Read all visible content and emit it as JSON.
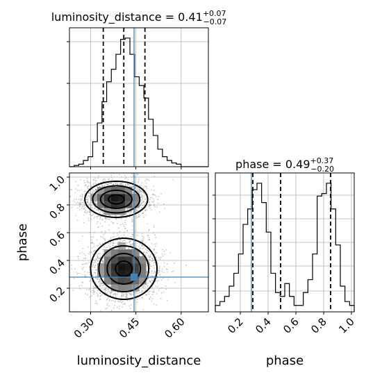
{
  "chart_data": [
    {
      "type": "histogram",
      "name": "luminosity_distance",
      "title": {
        "main": "luminosity_distance = 0.41",
        "sup": "+0.07",
        "sub": "−0.07"
      },
      "xlim": [
        0.23,
        0.69
      ],
      "x_ticks": [
        0.3,
        0.45,
        0.6
      ],
      "quantiles": [
        0.342,
        0.41,
        0.48
      ],
      "truth": 0.444,
      "bin_edges": [
        0.23,
        0.2454,
        0.2608,
        0.2762,
        0.2916,
        0.307,
        0.3224,
        0.3378,
        0.3532,
        0.3686,
        0.384,
        0.3994,
        0.4148,
        0.4302,
        0.4456,
        0.461,
        0.4764,
        0.4918,
        0.5072,
        0.5226,
        0.538,
        0.5534,
        0.5688,
        0.5842,
        0.5996,
        0.615,
        0.6304,
        0.6458,
        0.6612,
        0.6766,
        0.69
      ],
      "counts": [
        0,
        1,
        2,
        5,
        8,
        20,
        35,
        52,
        68,
        78,
        90,
        102,
        103,
        90,
        72,
        65,
        55,
        38,
        25,
        14,
        8,
        5,
        3,
        2,
        0,
        0,
        0,
        0,
        0,
        0
      ]
    },
    {
      "type": "histogram",
      "name": "phase",
      "title": {
        "main": "phase = 0.49",
        "sup": "+0.37",
        "sub": "−0.20"
      },
      "xlim": [
        0.02,
        1.02
      ],
      "x_ticks": [
        0.2,
        0.4,
        0.6,
        0.8,
        1.0
      ],
      "x_tick_labels": [
        "0.2",
        "0.4",
        "0.6",
        "0.8",
        "1.0"
      ],
      "quantiles": [
        0.29,
        0.49,
        0.85
      ],
      "truth": 0.28,
      "bin_edges": [
        0.02,
        0.0533,
        0.0867,
        0.12,
        0.1533,
        0.1867,
        0.22,
        0.2533,
        0.2867,
        0.32,
        0.3533,
        0.3867,
        0.42,
        0.4533,
        0.4867,
        0.52,
        0.5533,
        0.5867,
        0.62,
        0.6533,
        0.6867,
        0.72,
        0.7533,
        0.7867,
        0.82,
        0.8533,
        0.8867,
        0.92,
        0.9533,
        0.9867,
        1.02
      ],
      "counts": [
        5,
        8,
        12,
        20,
        30,
        45,
        68,
        80,
        95,
        100,
        85,
        62,
        30,
        15,
        12,
        22,
        12,
        5,
        5,
        15,
        25,
        45,
        90,
        92,
        100,
        80,
        52,
        20,
        8,
        5
      ]
    },
    {
      "type": "scatter_contour",
      "x_name": "luminosity_distance",
      "y_name": "phase",
      "xlabel": "luminosity_distance",
      "ylabel": "phase",
      "xlim": [
        0.23,
        0.69
      ],
      "ylim": [
        0.03,
        1.03
      ],
      "x_ticks": [
        0.3,
        0.45,
        0.6
      ],
      "x_tick_labels": [
        "0.30",
        "0.45",
        "0.60"
      ],
      "y_ticks": [
        0.2,
        0.4,
        0.6,
        0.8,
        1.0
      ],
      "y_tick_labels": [
        "0.2",
        "0.4",
        "0.6",
        "0.8",
        "1.0"
      ],
      "truth": [
        0.444,
        0.28
      ],
      "modes": [
        {
          "center": [
            0.41,
            0.34
          ],
          "sigma": [
            0.055,
            0.11
          ],
          "weight": 0.55
        },
        {
          "center": [
            0.385,
            0.84
          ],
          "sigma": [
            0.052,
            0.065
          ],
          "weight": 0.45
        }
      ],
      "contour_levels": [
        0.5,
        1.0,
        1.5,
        2.0
      ],
      "n_samples": 4500
    }
  ]
}
